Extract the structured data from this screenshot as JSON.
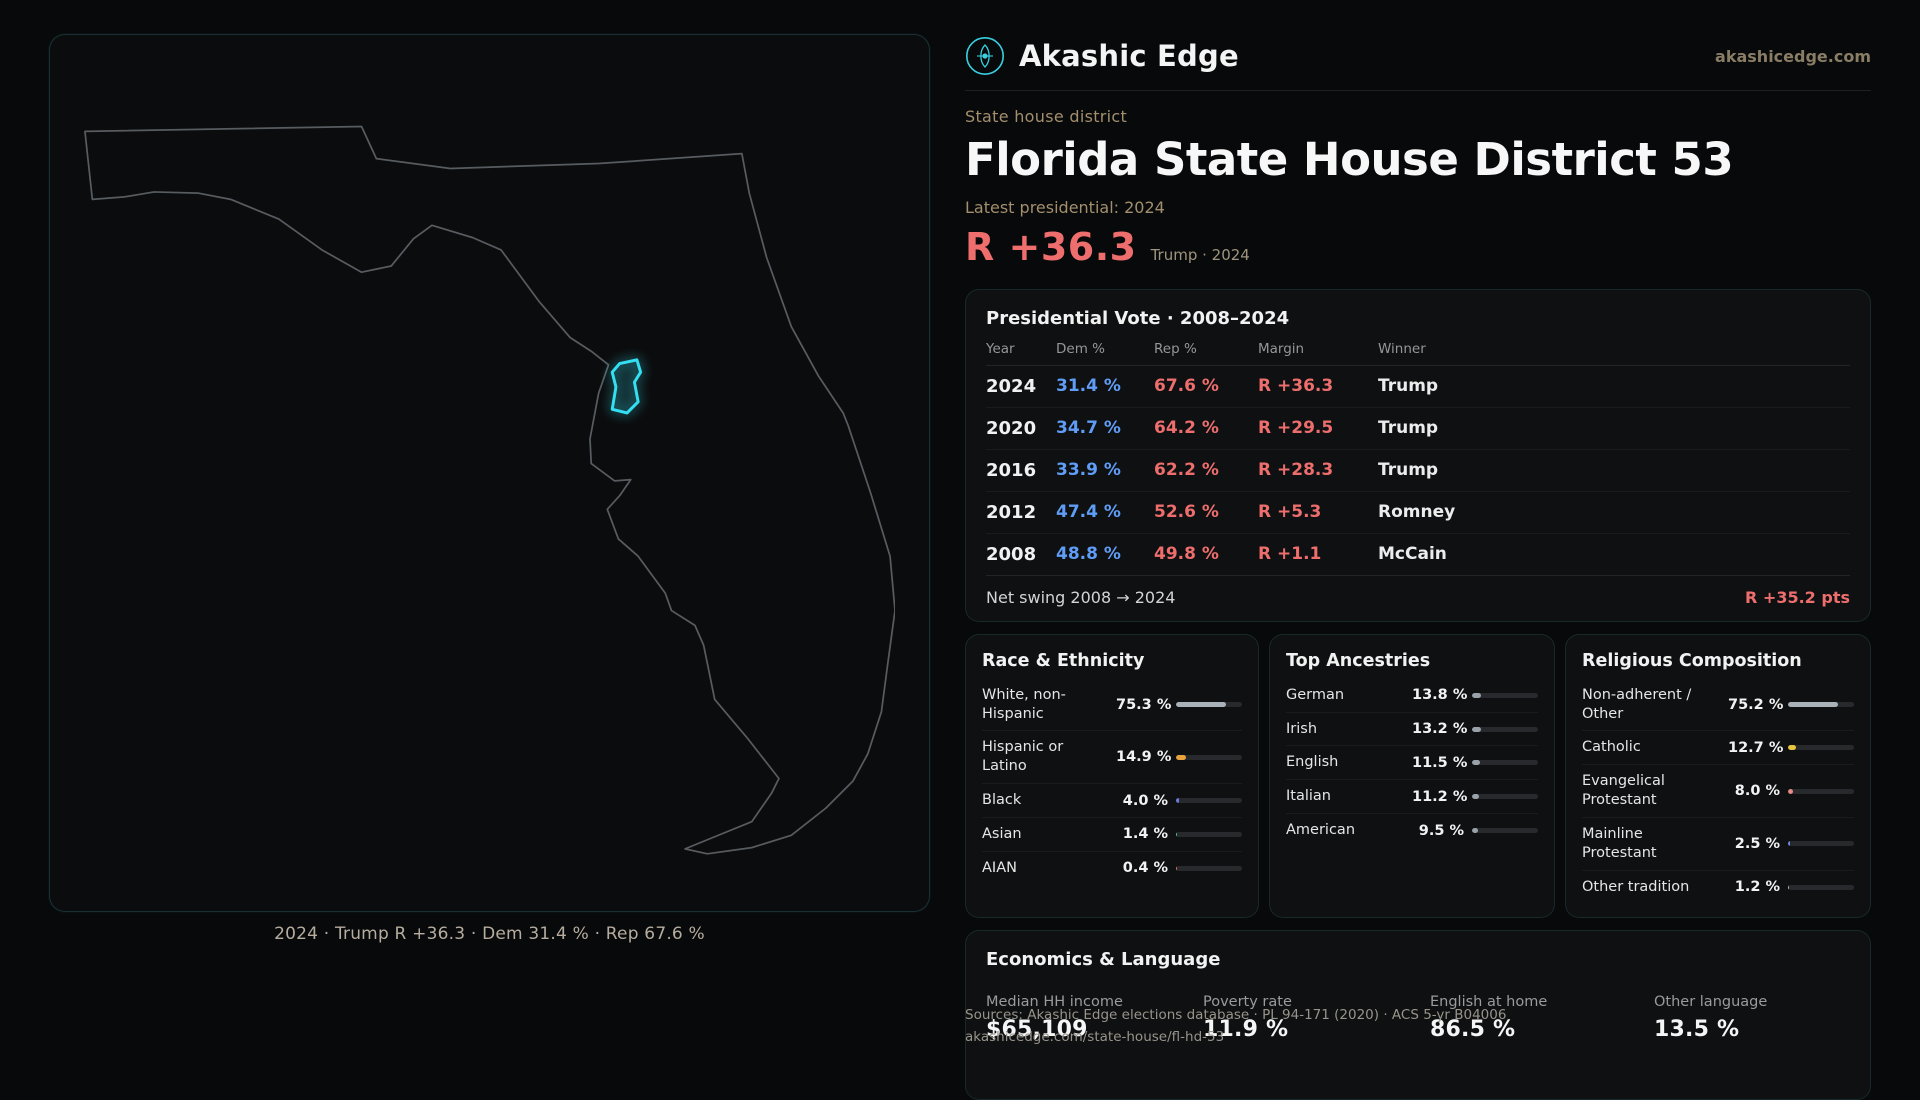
{
  "brand": {
    "name": "Akashic Edge",
    "site": "akashicedge.com"
  },
  "page": {
    "eyebrow": "State house district",
    "title": "Florida State House District 53",
    "latest_label": "Latest presidential: 2024",
    "headline_margin": "R +36.3",
    "headline_context": "Trump · 2024"
  },
  "map": {
    "caption": "2024 · Trump R +36.3 · Dem 31.4 % · Rep 67.6 %",
    "district_color": "#35dff2",
    "outline_color": "#575c61"
  },
  "presidential": {
    "title": "Presidential Vote · 2008–2024",
    "columns": [
      "Year",
      "Dem %",
      "Rep %",
      "Margin",
      "Winner"
    ],
    "rows": [
      {
        "year": "2024",
        "dem": "31.4 %",
        "rep": "67.6 %",
        "margin": "R +36.3",
        "winner": "Trump"
      },
      {
        "year": "2020",
        "dem": "34.7 %",
        "rep": "64.2 %",
        "margin": "R +29.5",
        "winner": "Trump"
      },
      {
        "year": "2016",
        "dem": "33.9 %",
        "rep": "62.2 %",
        "margin": "R +28.3",
        "winner": "Trump"
      },
      {
        "year": "2012",
        "dem": "47.4 %",
        "rep": "52.6 %",
        "margin": "R +5.3",
        "winner": "Romney"
      },
      {
        "year": "2008",
        "dem": "48.8 %",
        "rep": "49.8 %",
        "margin": "R +1.1",
        "winner": "McCain"
      }
    ],
    "net_swing_label": "Net swing 2008 → 2024",
    "net_swing_value": "R +35.2 pts"
  },
  "race": {
    "title": "Race & Ethnicity",
    "rows": [
      {
        "label": "White, non-Hispanic",
        "value": "75.3 %",
        "pct": 75.3,
        "color": "#a9b1b9"
      },
      {
        "label": "Hispanic or Latino",
        "value": "14.9 %",
        "pct": 14.9,
        "color": "#e8a33d"
      },
      {
        "label": "Black",
        "value": "4.0 %",
        "pct": 4.0,
        "color": "#6b7ae0"
      },
      {
        "label": "Asian",
        "value": "1.4 %",
        "pct": 1.4,
        "color": "#4bbf8f"
      },
      {
        "label": "AIAN",
        "value": "0.4 %",
        "pct": 0.4,
        "color": "#d96b6b"
      }
    ]
  },
  "ancestries": {
    "title": "Top Ancestries",
    "rows": [
      {
        "label": "German",
        "value": "13.8 %",
        "pct": 13.8,
        "color": "#99a1a9"
      },
      {
        "label": "Irish",
        "value": "13.2 %",
        "pct": 13.2,
        "color": "#99a1a9"
      },
      {
        "label": "English",
        "value": "11.5 %",
        "pct": 11.5,
        "color": "#99a1a9"
      },
      {
        "label": "Italian",
        "value": "11.2 %",
        "pct": 11.2,
        "color": "#99a1a9"
      },
      {
        "label": "American",
        "value": "9.5 %",
        "pct": 9.5,
        "color": "#99a1a9"
      }
    ]
  },
  "religion": {
    "title": "Religious Composition",
    "rows": [
      {
        "label": "Non-adherent / Other",
        "value": "75.2 %",
        "pct": 75.2,
        "color": "#a9b1b9"
      },
      {
        "label": "Catholic",
        "value": "12.7 %",
        "pct": 12.7,
        "color": "#e8c53d"
      },
      {
        "label": "Evangelical Protestant",
        "value": "8.0 %",
        "pct": 8.0,
        "color": "#e88a8a"
      },
      {
        "label": "Mainline Protestant",
        "value": "2.5 %",
        "pct": 2.5,
        "color": "#6b8ae0"
      },
      {
        "label": "Other tradition",
        "value": "1.2 %",
        "pct": 1.2,
        "color": "#a9b1b9"
      }
    ]
  },
  "economics": {
    "title": "Economics & Language",
    "stats": [
      {
        "label": "Median HH income",
        "value": "$65,109"
      },
      {
        "label": "Poverty rate",
        "value": "11.9 %"
      },
      {
        "label": "English at home",
        "value": "86.5 %"
      },
      {
        "label": "Other language",
        "value": "13.5 %"
      }
    ]
  },
  "footer": {
    "sources": "Sources: Akashic Edge elections database · PL 94-171 (2020) · ACS 5-yr B04006",
    "permalink": "akashicedge.com/state-house/fl-hd-53"
  }
}
